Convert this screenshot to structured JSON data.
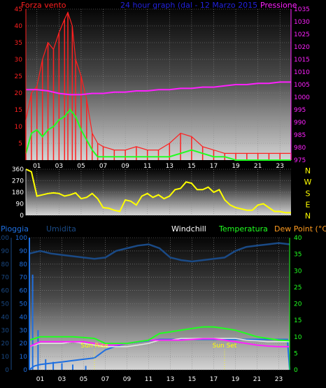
{
  "header": {
    "left": "Forza vento",
    "center": "24 hour graph (dal - 12 Marzo 2015",
    "right": "Pressione"
  },
  "colors": {
    "red": "#ff2020",
    "green": "#20ff20",
    "magenta": "#ff20ff",
    "yellow": "#ffff00",
    "blue": "#1e6fe0",
    "navy": "#1a4a86",
    "orange": "#ff9b1f",
    "white": "#ffffff",
    "grid": "#8a8a8a"
  },
  "xticks": [
    "01",
    "03",
    "05",
    "07",
    "09",
    "11",
    "13",
    "15",
    "17",
    "19",
    "21",
    "23"
  ],
  "chart_data": [
    {
      "type": "line",
      "name": "wind-pressure",
      "xlim": [
        0,
        24
      ],
      "ylim_left": [
        0,
        45
      ],
      "ylim_right": [
        975,
        1035
      ],
      "left_ticks": [
        "5",
        "10",
        "15",
        "20",
        "25",
        "30",
        "35",
        "40",
        "45"
      ],
      "right_ticks": [
        "975",
        "980",
        "985",
        "990",
        "995",
        "1000",
        "1005",
        "1010",
        "1015",
        "1020",
        "1025",
        "1030",
        "1035"
      ],
      "series": [
        {
          "key": "gust",
          "axis": "left",
          "x": [
            0,
            0.5,
            1,
            1.5,
            2,
            2.5,
            3,
            3.5,
            3.8,
            4.2,
            4.5,
            5,
            5.5,
            6,
            6.5,
            7,
            8,
            9,
            10,
            11,
            12,
            13,
            14,
            15,
            16,
            17,
            18,
            19,
            20,
            21,
            22,
            23,
            24
          ],
          "y": [
            12,
            20,
            22,
            30,
            35,
            33,
            38,
            42,
            44,
            40,
            30,
            25,
            18,
            8,
            5,
            4,
            3,
            3,
            4,
            3,
            3,
            5,
            8,
            7,
            4,
            3,
            2,
            2,
            2,
            2,
            2,
            2,
            2
          ]
        },
        {
          "key": "avg",
          "axis": "left",
          "x": [
            0,
            0.5,
            1,
            1.5,
            2,
            2.5,
            3,
            3.5,
            4,
            4.5,
            5,
            5.5,
            6,
            6.5,
            7,
            8,
            9,
            10,
            11,
            12,
            13,
            14,
            15,
            16,
            17,
            18,
            19,
            20,
            21,
            22,
            23,
            24
          ],
          "y": [
            2,
            8,
            9,
            7,
            9,
            10,
            12,
            13,
            15,
            13,
            9,
            6,
            3,
            1,
            1,
            1,
            1,
            1,
            1,
            1,
            1,
            2,
            3,
            2,
            1,
            1,
            0,
            0,
            0,
            0,
            0,
            0
          ]
        },
        {
          "key": "pressure",
          "axis": "right",
          "x": [
            0,
            1,
            2,
            3,
            4,
            5,
            6,
            7,
            8,
            9,
            10,
            11,
            12,
            13,
            14,
            15,
            16,
            17,
            18,
            19,
            20,
            21,
            22,
            23,
            24
          ],
          "y": [
            1003,
            1003,
            1002.5,
            1001.5,
            1001,
            1001,
            1001.5,
            1001.5,
            1002,
            1002,
            1002.5,
            1002.5,
            1003,
            1003,
            1003.5,
            1003.5,
            1004,
            1004,
            1004.5,
            1005,
            1005,
            1005.5,
            1005.5,
            1006,
            1006
          ]
        }
      ]
    },
    {
      "type": "scatter",
      "name": "wind-direction",
      "xlim": [
        0,
        24
      ],
      "ylim": [
        0,
        360
      ],
      "left_ticks": [
        "0",
        "90",
        "180",
        "270",
        "360"
      ],
      "compass": [
        "N",
        "W",
        "S",
        "E",
        "N"
      ],
      "series": [
        {
          "key": "direction",
          "x": [
            0,
            0.5,
            1,
            1.5,
            2,
            2.5,
            3,
            3.5,
            4,
            4.5,
            5,
            5.5,
            6,
            6.5,
            7,
            7.5,
            8,
            8.5,
            9,
            9.5,
            10,
            10.5,
            11,
            11.5,
            12,
            12.5,
            13,
            13.5,
            14,
            14.5,
            15,
            15.5,
            16,
            16.5,
            17,
            17.5,
            18,
            18.5,
            19,
            19.5,
            20,
            20.5,
            21,
            21.5,
            22,
            22.5,
            23,
            23.5,
            24
          ],
          "y": [
            360,
            340,
            150,
            160,
            170,
            175,
            170,
            150,
            160,
            175,
            130,
            140,
            170,
            130,
            60,
            55,
            40,
            30,
            120,
            110,
            80,
            150,
            170,
            140,
            160,
            130,
            150,
            200,
            210,
            260,
            250,
            200,
            200,
            220,
            180,
            200,
            120,
            80,
            60,
            50,
            40,
            40,
            80,
            90,
            60,
            30,
            30,
            20,
            20
          ]
        }
      ]
    },
    {
      "type": "line",
      "name": "humidity-temperature",
      "xlim": [
        0,
        24
      ],
      "ylim_left": [
        0,
        100
      ],
      "ylim_right": [
        0,
        40
      ],
      "left_ticks": [
        "0",
        "10",
        "20",
        "30",
        "40",
        "50",
        "60",
        "70",
        "80",
        "90",
        "100"
      ],
      "right_ticks": [
        "0",
        "5",
        "10",
        "15",
        "20",
        "25",
        "30",
        "35",
        "40"
      ],
      "header": {
        "pioggia": "Pioggia",
        "umidita": "Umidita",
        "windchill": "Windchill",
        "temperatura": "Temperatura",
        "dewpoint": "Dew Point (°C)"
      },
      "annotations": {
        "sunrise": "Sun Rise",
        "sunset": "Sun Set",
        "sunrise_hour": 6.0,
        "sunset_hour": 18.0
      },
      "series": [
        {
          "key": "humidity",
          "axis": "left",
          "x": [
            0,
            1,
            2,
            3,
            4,
            5,
            6,
            7,
            8,
            9,
            10,
            11,
            12,
            13,
            14,
            15,
            16,
            17,
            18,
            19,
            20,
            21,
            22,
            23,
            24
          ],
          "y": [
            88,
            90,
            88,
            87,
            86,
            85,
            84,
            85,
            90,
            92,
            94,
            95,
            92,
            85,
            83,
            82,
            83,
            84,
            85,
            90,
            93,
            94,
            95,
            96,
            95
          ]
        },
        {
          "key": "temperature",
          "axis": "right",
          "x": [
            0,
            1,
            2,
            3,
            4,
            5,
            6,
            7,
            8,
            9,
            10,
            11,
            12,
            13,
            14,
            15,
            16,
            17,
            18,
            19,
            20,
            21,
            22,
            23,
            24
          ],
          "y": [
            9,
            10,
            10,
            10,
            10,
            9.8,
            9.5,
            8,
            8,
            8,
            8.5,
            9,
            11,
            11.5,
            12,
            12.5,
            13,
            13,
            12.5,
            12,
            11,
            10,
            9.5,
            9,
            8.8
          ]
        },
        {
          "key": "windchill",
          "axis": "right",
          "x": [
            0,
            1,
            2,
            3,
            4,
            5,
            6,
            7,
            8,
            9,
            10,
            11,
            12,
            13,
            14,
            15,
            16,
            17,
            18,
            19,
            20,
            21,
            22,
            23,
            24
          ],
          "y": [
            7,
            8,
            8,
            8,
            8.5,
            8,
            7.5,
            7,
            7,
            7,
            7.5,
            8,
            9,
            9,
            9.5,
            9.5,
            9.5,
            9.5,
            9.5,
            9.5,
            9,
            8.8,
            8.5,
            8.5,
            8.5
          ]
        },
        {
          "key": "dewpoint",
          "axis": "right",
          "x": [
            0,
            1,
            2,
            3,
            4,
            5,
            6,
            7,
            8,
            9,
            10,
            11,
            12,
            13,
            14,
            15,
            16,
            17,
            18,
            19,
            20,
            21,
            22,
            23,
            24
          ],
          "y": [
            7,
            8.5,
            8.5,
            8.5,
            8.5,
            8.5,
            8,
            7.5,
            7.5,
            8,
            8.5,
            9,
            9,
            9,
            9,
            9.2,
            9.4,
            9.4,
            9,
            8.5,
            8,
            7.5,
            7.2,
            7,
            7
          ]
        },
        {
          "key": "rain",
          "axis": "left",
          "x": [
            0,
            0.3,
            0.5,
            1,
            2,
            3,
            4,
            5,
            6,
            6.5,
            7,
            8,
            9,
            10,
            11,
            12,
            13,
            14,
            15,
            16,
            17,
            18,
            19,
            20,
            21,
            22,
            23,
            23.8,
            24
          ],
          "y": [
            0,
            2,
            3,
            4,
            5,
            6,
            7,
            8,
            9,
            12,
            15,
            18,
            20,
            21,
            22,
            23,
            23,
            23,
            23,
            23,
            23,
            23,
            23,
            23,
            23,
            23,
            23,
            23,
            0
          ]
        },
        {
          "key": "rain_rate",
          "axis": "left",
          "x": [
            0.3,
            0.8,
            1.5,
            2.2,
            3,
            4,
            5.2
          ],
          "y": [
            72,
            30,
            8,
            6,
            5,
            4,
            3
          ]
        }
      ]
    }
  ]
}
